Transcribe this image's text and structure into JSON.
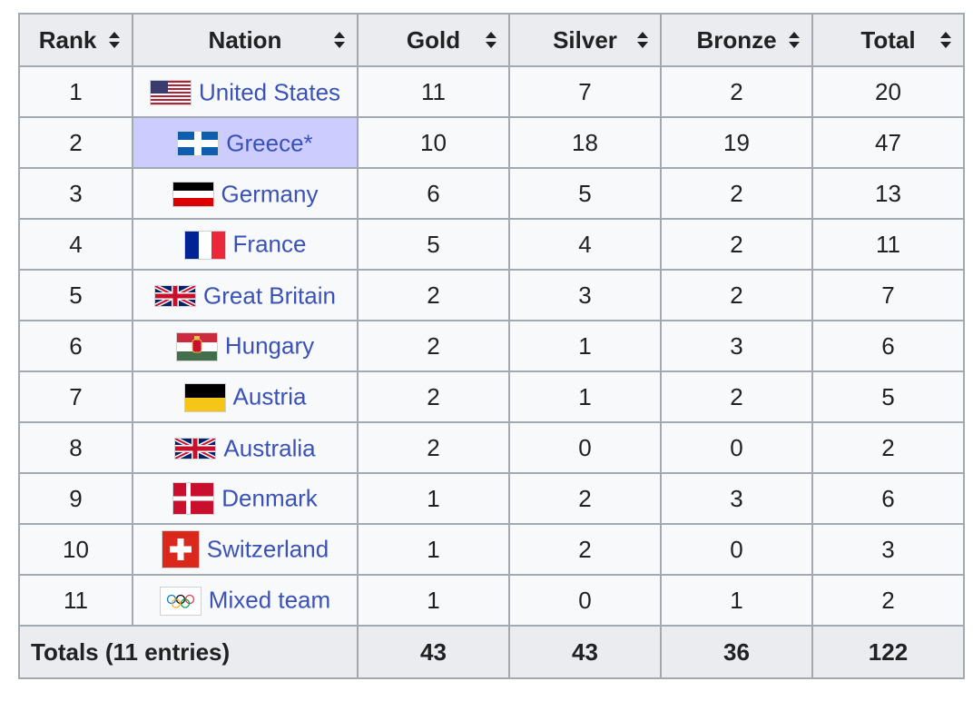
{
  "headers": {
    "rank": "Rank",
    "nation": "Nation",
    "gold": "Gold",
    "silver": "Silver",
    "bronze": "Bronze",
    "total": "Total"
  },
  "colors": {
    "gold": "#f8dc4a",
    "silver": "#c8c8c8",
    "bronze": "#c79a68",
    "host": "#ccccff",
    "link": "#3a52b8"
  },
  "rows": [
    {
      "rank": "1",
      "nation": "United States",
      "flag": "us-flag-icon",
      "gold": "11",
      "silver": "7",
      "bronze": "2",
      "total": "20"
    },
    {
      "rank": "2",
      "nation": "Greece*",
      "flag": "greece-flag-icon",
      "gold": "10",
      "silver": "18",
      "bronze": "19",
      "total": "47",
      "host": true
    },
    {
      "rank": "3",
      "nation": "Germany",
      "flag": "germany-flag-icon",
      "gold": "6",
      "silver": "5",
      "bronze": "2",
      "total": "13"
    },
    {
      "rank": "4",
      "nation": "France",
      "flag": "france-flag-icon",
      "gold": "5",
      "silver": "4",
      "bronze": "2",
      "total": "11"
    },
    {
      "rank": "5",
      "nation": "Great Britain",
      "flag": "union-jack-flag-icon",
      "gold": "2",
      "silver": "3",
      "bronze": "2",
      "total": "7"
    },
    {
      "rank": "6",
      "nation": "Hungary",
      "flag": "hungary-flag-icon",
      "gold": "2",
      "silver": "1",
      "bronze": "3",
      "total": "6"
    },
    {
      "rank": "7",
      "nation": "Austria",
      "flag": "austria-flag-icon",
      "gold": "2",
      "silver": "1",
      "bronze": "2",
      "total": "5"
    },
    {
      "rank": "8",
      "nation": "Australia",
      "flag": "union-jack-flag-icon",
      "gold": "2",
      "silver": "0",
      "bronze": "0",
      "total": "2"
    },
    {
      "rank": "9",
      "nation": "Denmark",
      "flag": "denmark-flag-icon",
      "gold": "1",
      "silver": "2",
      "bronze": "3",
      "total": "6"
    },
    {
      "rank": "10",
      "nation": "Switzerland",
      "flag": "switzerland-flag-icon",
      "gold": "1",
      "silver": "2",
      "bronze": "0",
      "total": "3"
    },
    {
      "rank": "11",
      "nation": "Mixed team",
      "flag": "olympic-rings-flag-icon",
      "gold": "1",
      "silver": "0",
      "bronze": "1",
      "total": "2"
    }
  ],
  "totals": {
    "label": "Totals (11 entries)",
    "gold": "43",
    "silver": "43",
    "bronze": "36",
    "total": "122"
  }
}
